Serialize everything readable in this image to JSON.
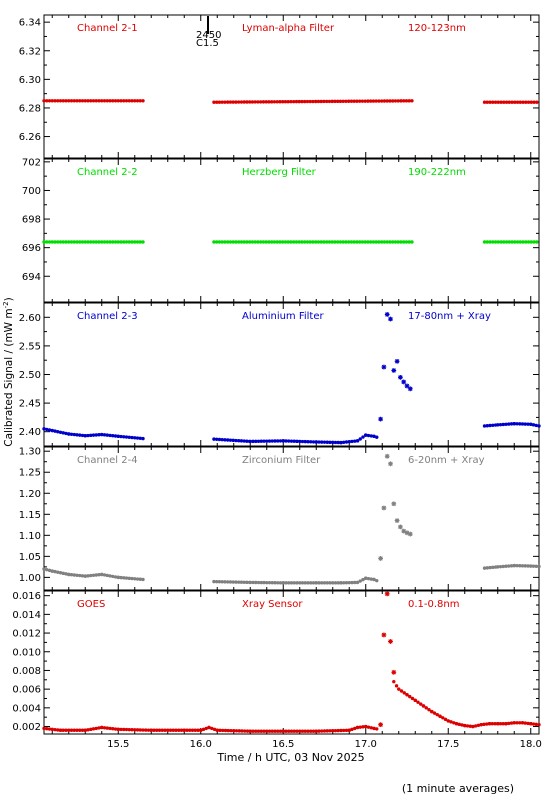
{
  "chart_data": {
    "type": "scatter",
    "x_axis": {
      "xlim": [
        15.05,
        18.05
      ],
      "ticks": [
        "15.5",
        "16.0",
        "16.5",
        "17.0",
        "17.5",
        "18.0"
      ],
      "tick_values": [
        15.5,
        16.0,
        16.5,
        17.0,
        17.5,
        18.0
      ],
      "label": "Time / h UTC, 03 Nov 2025"
    },
    "y_label_main": "Calibrated Signal / (mW m",
    "y_label_sup": "-2",
    "y_label_end": ")",
    "footnote": "(1 minute averages)",
    "flare_marker": {
      "x": 16.04,
      "time_label": "2450",
      "class_label": "C1.5"
    },
    "panels": [
      {
        "channel": "Channel 2-1",
        "filter": "Lyman-alpha Filter",
        "band": "120-123nm",
        "color": "#dd0000",
        "ylim": [
          6.245,
          6.345
        ],
        "yticks": [
          "6.34",
          "6.32",
          "6.30",
          "6.28",
          "6.26"
        ],
        "ytick_values": [
          6.34,
          6.32,
          6.3,
          6.28,
          6.26
        ],
        "series": [
          {
            "x": [
              15.05,
              15.65
            ],
            "y": [
              6.285,
              6.285
            ]
          },
          {
            "x": [
              16.08,
              17.28
            ],
            "y": [
              6.284,
              6.285
            ]
          },
          {
            "x": [
              17.72,
              18.05
            ],
            "y": [
              6.284,
              6.284
            ]
          }
        ]
      },
      {
        "channel": "Channel 2-2",
        "filter": "Herzberg Filter",
        "band": "190-222nm",
        "color": "#00dd00",
        "ylim": [
          692.2,
          702.2
        ],
        "yticks": [
          "702",
          "700",
          "698",
          "696",
          "694"
        ],
        "ytick_values": [
          702,
          700,
          698,
          696,
          694
        ],
        "series": [
          {
            "x": [
              15.05,
              15.65
            ],
            "y": [
              696.4,
              696.4
            ]
          },
          {
            "x": [
              16.08,
              17.28
            ],
            "y": [
              696.4,
              696.4
            ]
          },
          {
            "x": [
              17.72,
              18.05
            ],
            "y": [
              696.4,
              696.4
            ]
          }
        ]
      },
      {
        "channel": "Channel 2-3",
        "filter": "Aluminium Filter",
        "band": "17-80nm + Xray",
        "color": "#0000cc",
        "ylim": [
          2.375,
          2.625
        ],
        "yticks": [
          "2.60",
          "2.55",
          "2.50",
          "2.45",
          "2.40"
        ],
        "ytick_values": [
          2.6,
          2.55,
          2.5,
          2.45,
          2.4
        ],
        "series": [
          {
            "x": [
              15.05,
              15.1,
              15.2,
              15.3,
              15.4,
              15.5,
              15.65
            ],
            "y": [
              2.405,
              2.402,
              2.396,
              2.393,
              2.395,
              2.392,
              2.388
            ]
          },
          {
            "x": [
              16.08,
              16.3,
              16.5,
              16.7,
              16.85,
              16.95,
              17.0,
              17.05,
              17.08
            ],
            "y": [
              2.387,
              2.383,
              2.384,
              2.382,
              2.381,
              2.384,
              2.394,
              2.392,
              2.389
            ]
          },
          {
            "x": [
              17.72,
              17.8,
              17.9,
              18.0,
              18.05
            ],
            "y": [
              2.41,
              2.412,
              2.414,
              2.413,
              2.41
            ]
          }
        ],
        "points": [
          {
            "x": [
              17.09,
              17.11,
              17.13,
              17.15,
              17.17,
              17.19,
              17.21,
              17.23,
              17.25,
              17.27
            ],
            "y": [
              2.422,
              2.513,
              2.605,
              2.597,
              2.507,
              2.523,
              2.495,
              2.487,
              2.48,
              2.475
            ]
          }
        ]
      },
      {
        "channel": "Channel 2-4",
        "filter": "Zirconium Filter",
        "band": "6-20nm + Xray",
        "color": "#808080",
        "ylim": [
          0.97,
          1.31
        ],
        "yticks": [
          "1.30",
          "1.25",
          "1.20",
          "1.15",
          "1.10",
          "1.05",
          "1.00"
        ],
        "ytick_values": [
          1.3,
          1.25,
          1.2,
          1.15,
          1.1,
          1.05,
          1.0
        ],
        "series": [
          {
            "x": [
              15.05,
              15.1,
              15.2,
              15.3,
              15.4,
              15.5,
              15.65
            ],
            "y": [
              1.02,
              1.015,
              1.007,
              1.003,
              1.007,
              1.0,
              0.995
            ]
          },
          {
            "x": [
              16.08,
              16.3,
              16.5,
              16.7,
              16.85,
              16.95,
              17.0,
              17.05,
              17.08
            ],
            "y": [
              0.99,
              0.988,
              0.987,
              0.987,
              0.987,
              0.988,
              0.998,
              0.995,
              0.99
            ]
          },
          {
            "x": [
              17.72,
              17.8,
              17.9,
              18.0,
              18.05
            ],
            "y": [
              1.022,
              1.025,
              1.028,
              1.027,
              1.026
            ]
          }
        ],
        "points": [
          {
            "x": [
              17.09,
              17.11,
              17.13,
              17.15,
              17.17,
              17.19,
              17.21,
              17.23,
              17.25,
              17.27
            ],
            "y": [
              1.045,
              1.165,
              1.288,
              1.27,
              1.175,
              1.135,
              1.12,
              1.11,
              1.106,
              1.103
            ]
          }
        ]
      },
      {
        "channel": "GOES",
        "filter": "Xray Sensor",
        "band": "0.1-0.8nm",
        "color": "#dd0000",
        "ylim": [
          0.0012,
          0.0165
        ],
        "yticks": [
          "0.016",
          "0.014",
          "0.012",
          "0.010",
          "0.008",
          "0.006",
          "0.004",
          "0.002"
        ],
        "ytick_values": [
          0.016,
          0.014,
          0.012,
          0.01,
          0.008,
          0.006,
          0.004,
          0.002
        ],
        "series": [
          {
            "x": [
              15.05,
              15.15,
              15.3,
              15.4,
              15.5,
              15.7,
              15.9,
              16.0,
              16.05,
              16.1,
              16.3,
              16.5,
              16.7,
              16.9,
              16.95,
              17.0,
              17.05,
              17.08
            ],
            "y": [
              0.0018,
              0.0016,
              0.0016,
              0.0019,
              0.0017,
              0.0016,
              0.0016,
              0.0016,
              0.0019,
              0.0016,
              0.0015,
              0.0015,
              0.0015,
              0.0016,
              0.0019,
              0.002,
              0.0018,
              0.0017
            ]
          },
          {
            "x": [
              17.17,
              17.2,
              17.25,
              17.3,
              17.35,
              17.4,
              17.45,
              17.5,
              17.55,
              17.6,
              17.65,
              17.7,
              17.75,
              17.8,
              17.85,
              17.9,
              17.95,
              18.0,
              18.05
            ],
            "y": [
              0.0068,
              0.006,
              0.0054,
              0.0048,
              0.0042,
              0.0036,
              0.0031,
              0.0026,
              0.0023,
              0.0021,
              0.002,
              0.0022,
              0.0023,
              0.0023,
              0.0023,
              0.0024,
              0.0024,
              0.0023,
              0.0022
            ]
          }
        ],
        "points": [
          {
            "x": [
              17.09,
              17.11,
              17.13,
              17.15,
              17.17
            ],
            "y": [
              0.0022,
              0.0118,
              0.0162,
              0.0111,
              0.0078
            ]
          }
        ]
      }
    ]
  }
}
